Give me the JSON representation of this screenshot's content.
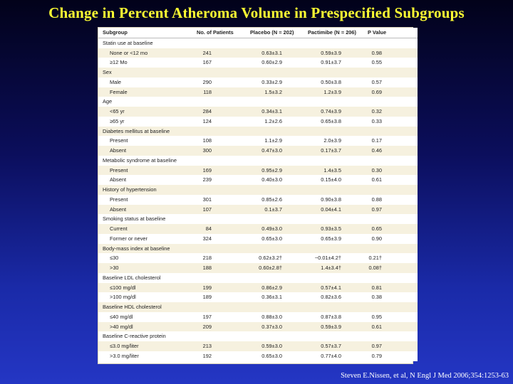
{
  "title": "Change in Percent Atheroma Volume in Prespecified Subgroups",
  "table": {
    "headers": [
      "Subgroup",
      "No. of Patients",
      "Placebo (N = 202)",
      "Pactimibe (N = 206)",
      "P Value"
    ],
    "rows": [
      {
        "type": "category",
        "label": "Statin use at baseline"
      },
      {
        "type": "data",
        "label": "None or <12 mo",
        "n": "241",
        "placebo": "0.63±3.1",
        "pactimibe": "0.59±3.9",
        "p": "0.98"
      },
      {
        "type": "data",
        "label": "≥12 Mo",
        "n": "167",
        "placebo": "0.60±2.9",
        "pactimibe": "0.91±3.7",
        "p": "0.55"
      },
      {
        "type": "category",
        "label": "Sex"
      },
      {
        "type": "data",
        "label": "Male",
        "n": "290",
        "placebo": "0.33±2.9",
        "pactimibe": "0.50±3.8",
        "p": "0.57"
      },
      {
        "type": "data",
        "label": "Female",
        "n": "118",
        "placebo": "1.5±3.2",
        "pactimibe": "1.2±3.9",
        "p": "0.69"
      },
      {
        "type": "category",
        "label": "Age"
      },
      {
        "type": "data",
        "label": "<65 yr",
        "n": "284",
        "placebo": "0.34±3.1",
        "pactimibe": "0.74±3.9",
        "p": "0.32"
      },
      {
        "type": "data",
        "label": "≥65 yr",
        "n": "124",
        "placebo": "1.2±2.6",
        "pactimibe": "0.65±3.8",
        "p": "0.33"
      },
      {
        "type": "category",
        "label": "Diabetes mellitus at baseline"
      },
      {
        "type": "data",
        "label": "Present",
        "n": "108",
        "placebo": "1.1±2.9",
        "pactimibe": "2.0±3.9",
        "p": "0.17"
      },
      {
        "type": "data",
        "label": "Absent",
        "n": "300",
        "placebo": "0.47±3.0",
        "pactimibe": "0.17±3.7",
        "p": "0.46"
      },
      {
        "type": "category",
        "label": "Metabolic syndrome at baseline"
      },
      {
        "type": "data",
        "label": "Present",
        "n": "169",
        "placebo": "0.95±2.9",
        "pactimibe": "1.4±3.5",
        "p": "0.30"
      },
      {
        "type": "data",
        "label": "Absent",
        "n": "239",
        "placebo": "0.40±3.0",
        "pactimibe": "0.15±4.0",
        "p": "0.61"
      },
      {
        "type": "category",
        "label": "History of hypertension"
      },
      {
        "type": "data",
        "label": "Present",
        "n": "301",
        "placebo": "0.85±2.6",
        "pactimibe": "0.90±3.8",
        "p": "0.88"
      },
      {
        "type": "data",
        "label": "Absent",
        "n": "107",
        "placebo": "0.1±3.7",
        "pactimibe": "0.04±4.1",
        "p": "0.97"
      },
      {
        "type": "category",
        "label": "Smoking status at baseline"
      },
      {
        "type": "data",
        "label": "Current",
        "n": "84",
        "placebo": "0.49±3.0",
        "pactimibe": "0.93±3.5",
        "p": "0.65"
      },
      {
        "type": "data",
        "label": "Former or never",
        "n": "324",
        "placebo": "0.65±3.0",
        "pactimibe": "0.65±3.9",
        "p": "0.90"
      },
      {
        "type": "category",
        "label": "Body-mass index at baseline"
      },
      {
        "type": "data",
        "label": "≤30",
        "n": "218",
        "placebo": "0.62±3.2†",
        "pactimibe": "−0.01±4.2†",
        "p": "0.21†"
      },
      {
        "type": "data",
        "label": ">30",
        "n": "188",
        "placebo": "0.60±2.8†",
        "pactimibe": "1.4±3.4†",
        "p": "0.08†"
      },
      {
        "type": "category",
        "label": "Baseline LDL cholesterol"
      },
      {
        "type": "data",
        "label": "≤100 mg/dl",
        "n": "199",
        "placebo": "0.86±2.9",
        "pactimibe": "0.57±4.1",
        "p": "0.81"
      },
      {
        "type": "data",
        "label": ">100 mg/dl",
        "n": "189",
        "placebo": "0.36±3.1",
        "pactimibe": "0.82±3.6",
        "p": "0.38"
      },
      {
        "type": "category",
        "label": "Baseline HDL cholesterol"
      },
      {
        "type": "data",
        "label": "≤40 mg/dl",
        "n": "197",
        "placebo": "0.88±3.0",
        "pactimibe": "0.87±3.8",
        "p": "0.95"
      },
      {
        "type": "data",
        "label": ">40 mg/dl",
        "n": "209",
        "placebo": "0.37±3.0",
        "pactimibe": "0.59±3.9",
        "p": "0.61"
      },
      {
        "type": "category",
        "label": "Baseline C-reactive protein"
      },
      {
        "type": "data",
        "label": "≤3.0 mg/liter",
        "n": "213",
        "placebo": "0.59±3.0",
        "pactimibe": "0.57±3.7",
        "p": "0.97"
      },
      {
        "type": "data",
        "label": ">3.0 mg/liter",
        "n": "192",
        "placebo": "0.65±3.0",
        "pactimibe": "0.77±4.0",
        "p": "0.79"
      }
    ]
  },
  "citation": "Steven E.Nissen, et al, N Engl J Med 2006;354:1253-63",
  "colors": {
    "title": "#ffff33",
    "row_stripe": "#f6f1df",
    "background_top": "#02021a",
    "background_bottom": "#2436c4"
  }
}
